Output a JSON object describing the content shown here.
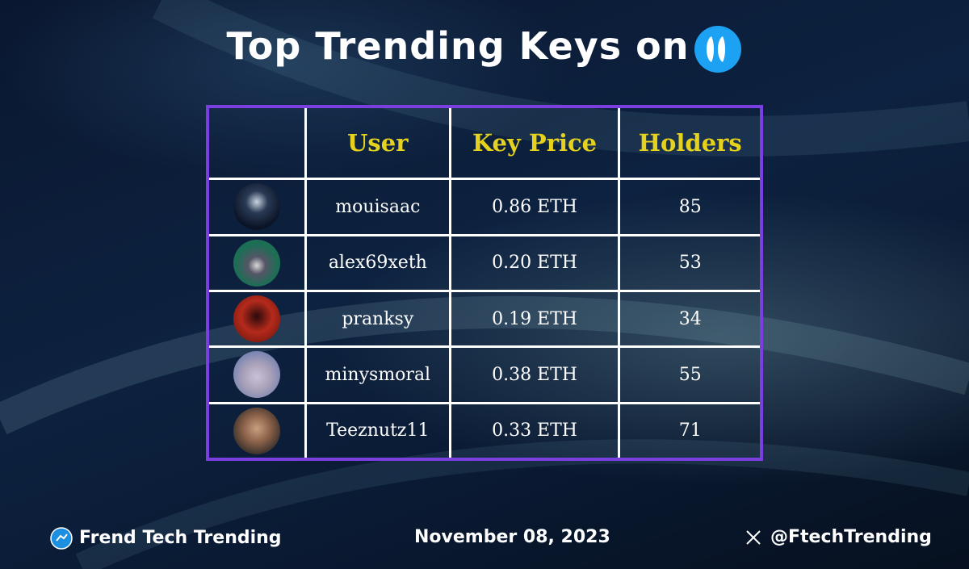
{
  "header": {
    "title": "Top Trending Keys on"
  },
  "table": {
    "columns": [
      "User",
      "Key Price",
      "Holders"
    ],
    "rows": [
      [
        "mouisaac",
        "0.86 ETH",
        85
      ],
      [
        "alex69xeth",
        "0.20 ETH",
        53
      ],
      [
        "pranksy",
        "0.19 ETH",
        34
      ],
      [
        "minysmoral",
        "0.38 ETH",
        55
      ],
      [
        "Teeznutz11",
        "0.33 ETH",
        71
      ]
    ]
  },
  "footer": {
    "brand": "Frend Tech Trending",
    "date": "November 08, 2023",
    "handle": "@FtechTrending"
  }
}
